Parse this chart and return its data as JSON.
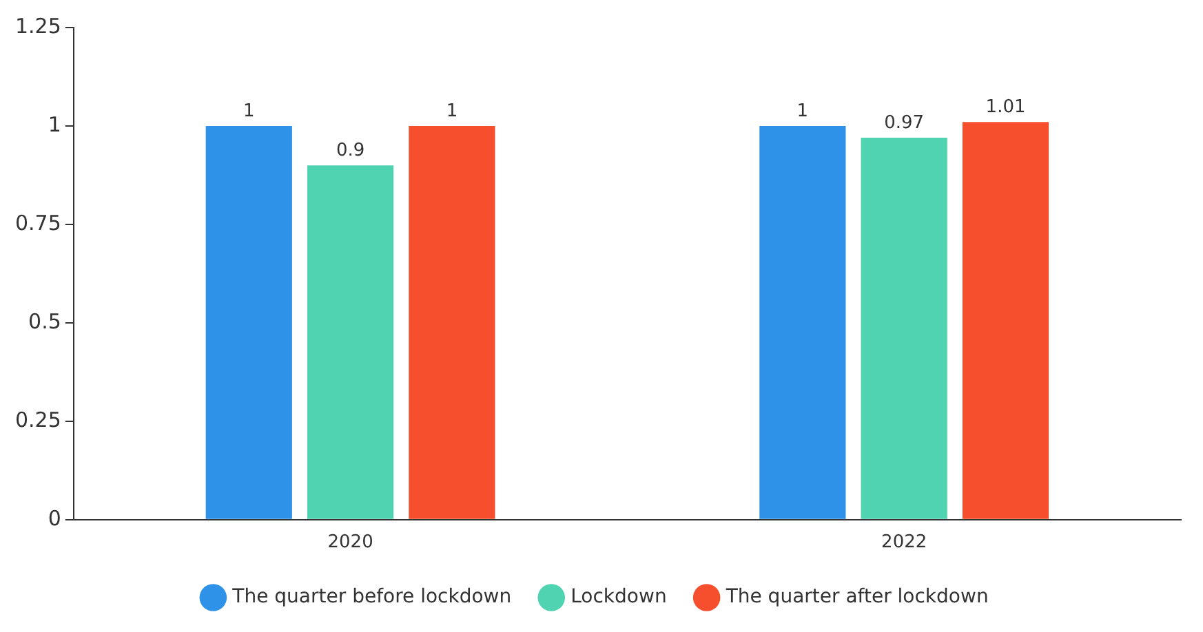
{
  "chart_data": {
    "type": "bar",
    "categories": [
      "2020",
      "2022"
    ],
    "series": [
      {
        "name": "The quarter before lockdown",
        "color": "#2e93e8",
        "values": [
          1,
          1
        ]
      },
      {
        "name": "Lockdown",
        "color": "#4fd3b1",
        "values": [
          0.9,
          0.97
        ]
      },
      {
        "name": "The quarter after lockdown",
        "color": "#f54f2d",
        "values": [
          1,
          1.01
        ]
      }
    ],
    "ylim": [
      0,
      1.25
    ],
    "yticks": [
      0,
      0.25,
      0.5,
      0.75,
      1,
      1.25
    ],
    "grid": false,
    "legend": "bottom",
    "data_labels": true
  }
}
